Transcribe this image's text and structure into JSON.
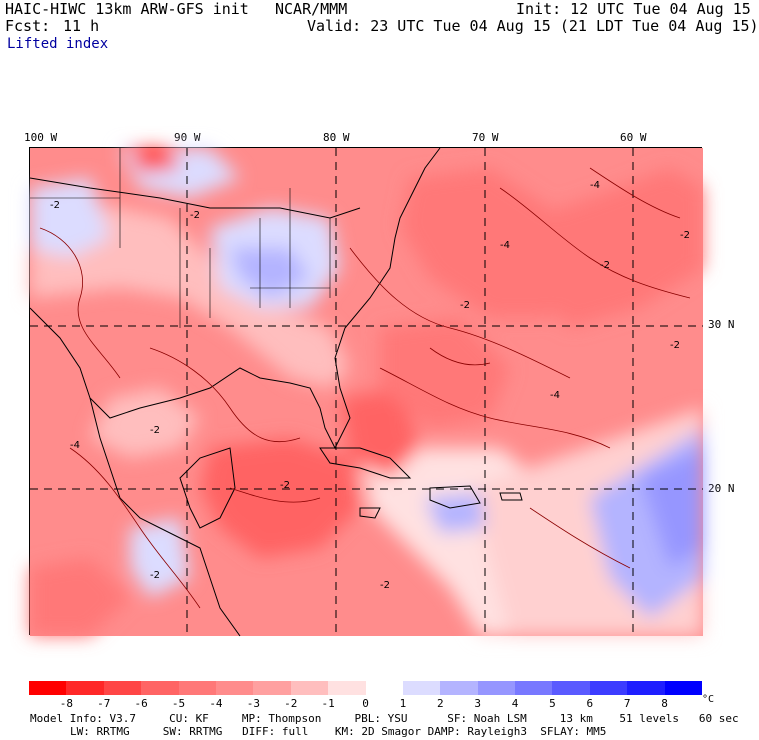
{
  "header": {
    "title": "HAIC-HIWC 13km ARW-GFS init",
    "center": "NCAR/MMM",
    "init": "Init: 12 UTC Tue 04 Aug 15",
    "fcst_label": "Fcst:",
    "fcst_value": "11 h",
    "valid": "Valid: 23 UTC Tue 04 Aug 15 (21 LDT Tue 04 Aug 15)",
    "field": "Lifted index"
  },
  "lon_labels": [
    "100 W",
    "90 W",
    "80 W",
    "70 W",
    "60 W"
  ],
  "lat_labels": [
    "30 N",
    "20 N"
  ],
  "map_contour_labels": [
    "-2",
    "-4",
    "-2",
    "-2",
    "-4",
    "-2",
    "-4",
    "-2",
    "-2",
    "-2",
    "-2",
    "-4",
    "-2",
    "-2"
  ],
  "colorbar": {
    "labels": [
      "-8",
      "-7",
      "-6",
      "-5",
      "-4",
      "-3",
      "-2",
      "-1",
      "0",
      "1",
      "2",
      "3",
      "4",
      "5",
      "6",
      "7",
      "8"
    ],
    "unit": "°C",
    "colors": [
      "#ff0000",
      "#ff2828",
      "#ff4646",
      "#ff6464",
      "#ff7878",
      "#ff8c8c",
      "#ffa0a0",
      "#ffbebe",
      "#ffe1e1",
      "#ffffff",
      "#dcdcff",
      "#b4b4ff",
      "#9696ff",
      "#7878ff",
      "#5a5aff",
      "#3c3cff",
      "#1e1eff",
      "#0000ff"
    ]
  },
  "footer": {
    "line1": "Model Info: V3.7     CU: KF     MP: Thompson     PBL: YSU      SF: Noah LSM     13 km    51 levels   60 sec",
    "line2": "LW: RRTMG     SW: RRTMG   DIFF: full    KM: 2D Smagor DAMP: Rayleigh3  SFLAY: MM5"
  }
}
